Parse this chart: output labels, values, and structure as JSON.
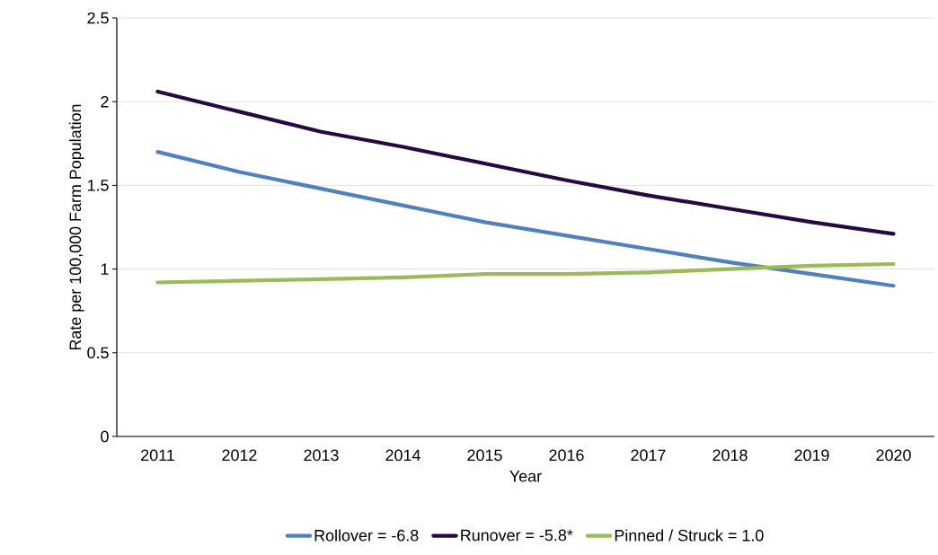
{
  "chart_data": {
    "type": "line",
    "xlabel": "Year",
    "ylabel": "Rate per 100,000 Farm Population",
    "categories": [
      "2011",
      "2012",
      "2013",
      "2014",
      "2015",
      "2016",
      "2017",
      "2018",
      "2019",
      "2020"
    ],
    "series": [
      {
        "name": "Rollover = -6.8",
        "color": "#4f81bd",
        "values": [
          1.7,
          1.58,
          1.48,
          1.38,
          1.28,
          1.2,
          1.12,
          1.04,
          0.97,
          0.9
        ]
      },
      {
        "name": "Runover = -5.8*",
        "color": "#240a40",
        "values": [
          2.06,
          1.94,
          1.82,
          1.73,
          1.63,
          1.53,
          1.44,
          1.36,
          1.28,
          1.21
        ]
      },
      {
        "name": "Pinned / Struck = 1.0",
        "color": "#9bbb59",
        "values": [
          0.92,
          0.93,
          0.94,
          0.95,
          0.97,
          0.97,
          0.98,
          1.0,
          1.02,
          1.03
        ]
      }
    ],
    "ylim": [
      0,
      2.5
    ],
    "yticks": [
      0,
      0.5,
      1,
      1.5,
      2,
      2.5
    ],
    "grid": "y",
    "legend": "bottom",
    "marker": "none",
    "line_style": "solid"
  }
}
